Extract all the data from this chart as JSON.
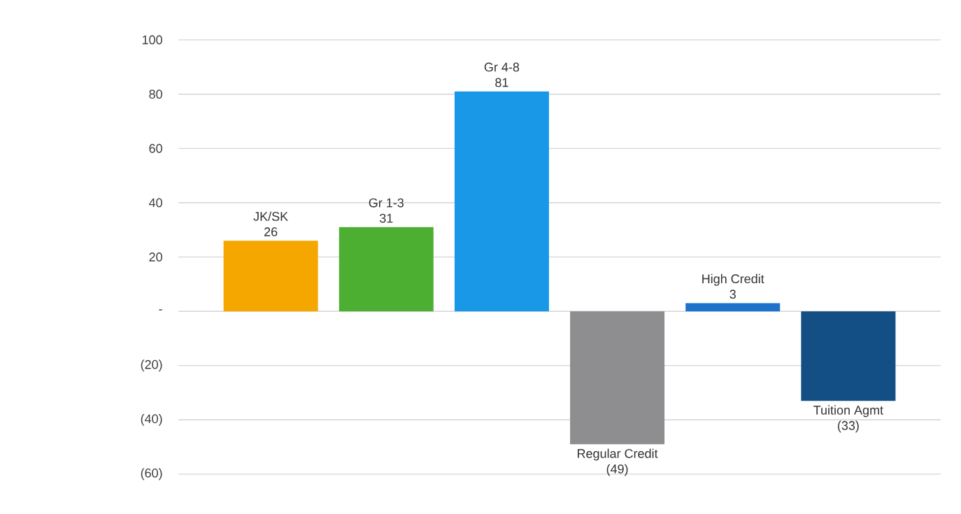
{
  "chart_data": {
    "type": "bar",
    "categories": [
      null,
      null,
      null,
      null,
      null,
      null
    ],
    "values": [
      26,
      31,
      81,
      -49,
      3,
      -33
    ],
    "value_labels": [
      "26",
      "31",
      "81",
      "(49)",
      "3",
      "(33)"
    ],
    "annotations": [
      "JK/SK",
      "Gr 1-3",
      "Gr 4-8",
      "Regular Credit",
      "High Credit",
      "Tuition Agmt"
    ],
    "colors": [
      "#f5a700",
      "#4caf32",
      "#1a98e8",
      "#8e8e90",
      "#1f72cc",
      "#134f84"
    ],
    "ylim": [
      -60,
      100
    ],
    "yticks": [
      100,
      80,
      60,
      40,
      20,
      {
        "value": 0,
        "label": "-"
      },
      {
        "value": -20,
        "label": "(20)"
      },
      {
        "value": -40,
        "label": "(40)"
      },
      {
        "value": -60,
        "label": "(60)"
      }
    ],
    "grid": "y"
  }
}
